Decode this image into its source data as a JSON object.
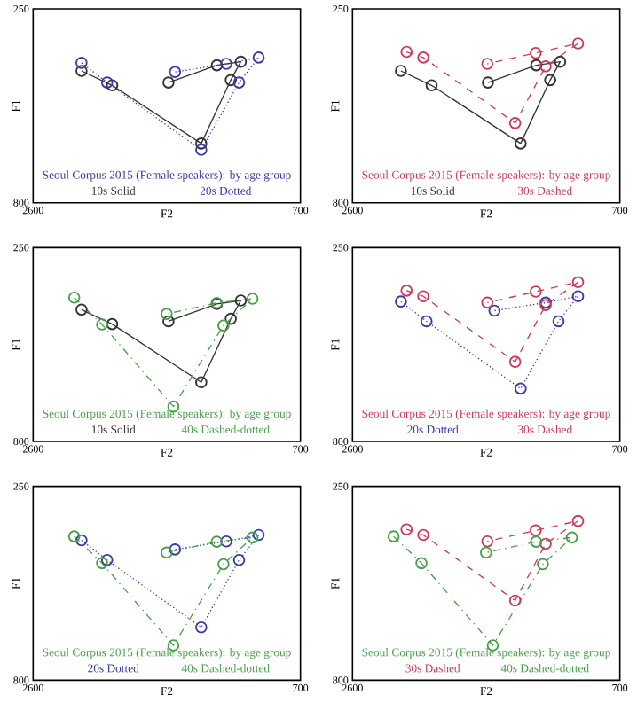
{
  "chart_data": [
    {
      "type": "line",
      "title": "Seoul Corpus 2015 (Female speakers): by age group",
      "xlabel": "F2",
      "ylabel": "F1",
      "xlim": [
        2600,
        700
      ],
      "ylim": [
        800,
        250
      ],
      "xticks": [
        2600,
        700
      ],
      "yticks": [
        250,
        800
      ],
      "marker": "circle",
      "legend": "bottom",
      "series": [
        {
          "name": "10s Solid",
          "color": "#333333",
          "line_style": "solid",
          "x": [
            2256,
            2038,
            1405,
            1195,
            1124,
            1294,
            1638
          ],
          "values": [
            426,
            467,
            632,
            452,
            400,
            410,
            459
          ]
        },
        {
          "name": "20s Dotted",
          "color": "#3a3aa8",
          "line_style": "dotted",
          "x": [
            2256,
            2074,
            1405,
            1136,
            997,
            1227,
            1591
          ],
          "values": [
            403,
            459,
            650,
            459,
            388,
            406,
            429
          ]
        }
      ]
    },
    {
      "type": "line",
      "title": "Seoul Corpus 2015 (Female speakers): by age group",
      "xlabel": "F2",
      "ylabel": "F1",
      "xlim": [
        2600,
        700
      ],
      "ylim": [
        800,
        250
      ],
      "xticks": [
        2600,
        700
      ],
      "yticks": [
        250,
        800
      ],
      "marker": "circle",
      "legend": "bottom",
      "series": [
        {
          "name": "10s Solid",
          "color": "#333333",
          "line_style": "solid",
          "x": [
            2256,
            2038,
            1405,
            1195,
            1124,
            1294,
            1638
          ],
          "values": [
            426,
            467,
            632,
            452,
            400,
            410,
            459
          ]
        },
        {
          "name": "30s Dashed",
          "color": "#c83c5a",
          "line_style": "dashed",
          "x": [
            2216,
            2097,
            1444,
            1227,
            997,
            1298,
            1642
          ],
          "values": [
            372,
            388,
            574,
            413,
            348,
            375,
            406
          ]
        }
      ]
    },
    {
      "type": "line",
      "title": "Seoul Corpus 2015 (Female speakers): by age group",
      "xlabel": "F2",
      "ylabel": "F1",
      "xlim": [
        2600,
        700
      ],
      "ylim": [
        800,
        250
      ],
      "xticks": [
        2600,
        700
      ],
      "yticks": [
        250,
        800
      ],
      "marker": "circle",
      "legend": "bottom",
      "series": [
        {
          "name": "10s Solid",
          "color": "#333333",
          "line_style": "solid",
          "x": [
            2256,
            2038,
            1405,
            1195,
            1124,
            1294,
            1638
          ],
          "values": [
            426,
            467,
            632,
            452,
            400,
            410,
            459
          ]
        },
        {
          "name": "40s Dashed-dotted",
          "color": "#4aa04a",
          "line_style": "dashdotted",
          "x": [
            2308,
            2110,
            1603,
            1247,
            1041,
            1295,
            1651
          ],
          "values": [
            392,
            468,
            701,
            471,
            395,
            407,
            438
          ]
        }
      ]
    },
    {
      "type": "line",
      "title": "Seoul Corpus 2015 (Female speakers): by age group",
      "xlabel": "F2",
      "ylabel": "F1",
      "xlim": [
        2600,
        700
      ],
      "ylim": [
        800,
        250
      ],
      "xticks": [
        2600,
        700
      ],
      "yticks": [
        250,
        800
      ],
      "marker": "circle",
      "legend": "bottom",
      "series": [
        {
          "name": "20s Dotted",
          "color": "#3a3aa8",
          "line_style": "dotted",
          "x": [
            2256,
            2074,
            1405,
            1136,
            997,
            1227,
            1591
          ],
          "values": [
            403,
            459,
            650,
            459,
            388,
            406,
            429
          ]
        },
        {
          "name": "30s Dashed",
          "color": "#c83c5a",
          "line_style": "dashed",
          "x": [
            2216,
            2097,
            1444,
            1227,
            997,
            1298,
            1642
          ],
          "values": [
            372,
            388,
            574,
            413,
            348,
            375,
            406
          ]
        }
      ]
    },
    {
      "type": "line",
      "title": "Seoul Corpus 2015 (Female speakers): by age group",
      "xlabel": "F2",
      "ylabel": "F1",
      "xlim": [
        2600,
        700
      ],
      "ylim": [
        800,
        250
      ],
      "xticks": [
        2600,
        700
      ],
      "yticks": [
        250,
        800
      ],
      "marker": "circle",
      "legend": "bottom",
      "series": [
        {
          "name": "20s Dotted",
          "color": "#3a3aa8",
          "line_style": "dotted",
          "x": [
            2256,
            2074,
            1405,
            1136,
            997,
            1227,
            1591
          ],
          "values": [
            403,
            459,
            650,
            459,
            388,
            406,
            429
          ]
        },
        {
          "name": "40s Dashed-dotted",
          "color": "#4aa04a",
          "line_style": "dashdotted",
          "x": [
            2308,
            2110,
            1603,
            1247,
            1041,
            1295,
            1651
          ],
          "values": [
            392,
            468,
            701,
            471,
            395,
            407,
            438
          ]
        }
      ]
    },
    {
      "type": "line",
      "title": "Seoul Corpus 2015 (Female speakers): by age group",
      "xlabel": "F2",
      "ylabel": "F1",
      "xlim": [
        2600,
        700
      ],
      "ylim": [
        800,
        250
      ],
      "xticks": [
        2600,
        700
      ],
      "yticks": [
        250,
        800
      ],
      "marker": "circle",
      "legend": "bottom",
      "series": [
        {
          "name": "30s Dashed",
          "color": "#c83c5a",
          "line_style": "dashed",
          "x": [
            2216,
            2097,
            1444,
            1227,
            997,
            1298,
            1642
          ],
          "values": [
            372,
            388,
            574,
            413,
            348,
            375,
            406
          ]
        },
        {
          "name": "40s Dashed-dotted",
          "color": "#4aa04a",
          "line_style": "dashdotted",
          "x": [
            2308,
            2110,
            1603,
            1247,
            1041,
            1295,
            1651
          ],
          "values": [
            392,
            468,
            701,
            471,
            395,
            407,
            438
          ]
        }
      ]
    }
  ]
}
